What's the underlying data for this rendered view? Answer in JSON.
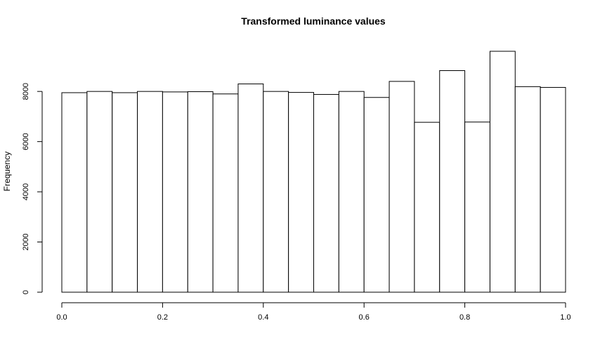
{
  "chart_data": {
    "type": "bar",
    "title": "Transformed luminance values",
    "xlabel": "",
    "ylabel": "Frequency",
    "bin_edges": [
      0.0,
      0.05,
      0.1,
      0.15,
      0.2,
      0.25,
      0.3,
      0.35,
      0.4,
      0.45,
      0.5,
      0.55,
      0.6,
      0.65,
      0.7,
      0.75,
      0.8,
      0.85,
      0.9,
      0.95,
      1.0
    ],
    "values": [
      7950,
      8000,
      7950,
      8000,
      7980,
      7990,
      7900,
      8300,
      8000,
      7960,
      7880,
      8000,
      7760,
      8400,
      6770,
      8830,
      6780,
      9600,
      8190,
      8160
    ],
    "xlim": [
      0,
      1
    ],
    "ylim": [
      0,
      9600
    ],
    "x_ticks": [
      0.0,
      0.2,
      0.4,
      0.6,
      0.8,
      1.0
    ],
    "x_tick_labels": [
      "0.0",
      "0.2",
      "0.4",
      "0.6",
      "0.8",
      "1.0"
    ],
    "y_ticks": [
      0,
      2000,
      4000,
      6000,
      8000
    ],
    "y_tick_labels": [
      "0",
      "2000",
      "4000",
      "6000",
      "8000"
    ],
    "grid": false,
    "legend": "none"
  }
}
